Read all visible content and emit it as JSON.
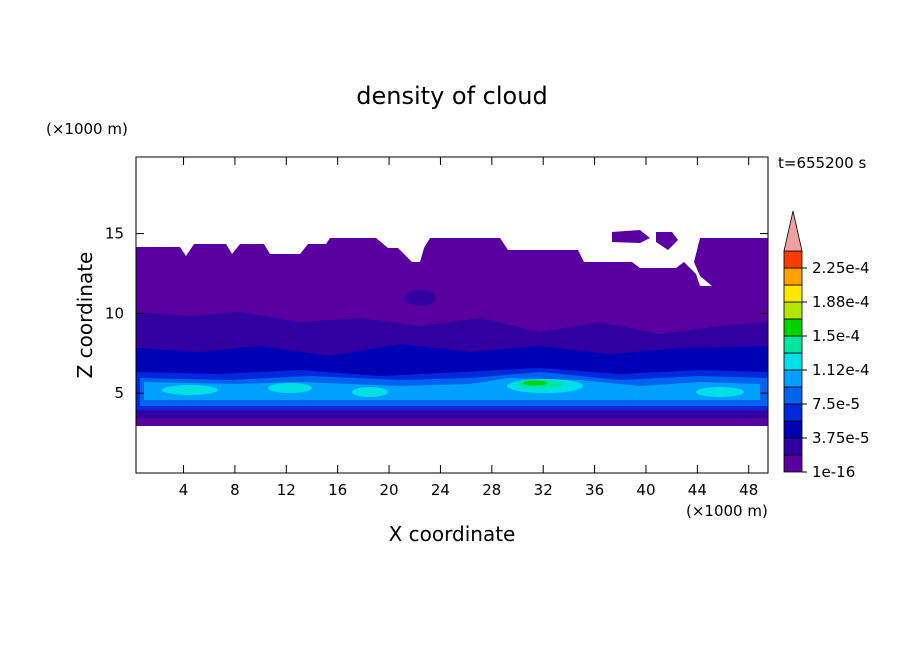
{
  "chart_data": {
    "type": "contour",
    "title": "density of cloud",
    "x_label": "X coordinate",
    "y_label": "Z coordinate",
    "x_unit": "(×1000 m)",
    "y_unit": "(×1000 m)",
    "time_label": "t=655200 s",
    "xlim": [
      0.3,
      49.5
    ],
    "ylim": [
      0,
      19.8
    ],
    "xticks": [
      4,
      8,
      12,
      16,
      20,
      24,
      28,
      32,
      36,
      40,
      44,
      48
    ],
    "yticks": [
      5,
      10,
      15
    ],
    "levels": [
      1e-16,
      1.875e-05,
      3.75e-05,
      5.625e-05,
      7.5e-05,
      9.375e-05,
      0.0001125,
      0.00013125,
      0.00015,
      0.00016875,
      0.0001875,
      0.00020625,
      0.000225,
      0.00024375
    ],
    "level_colors": [
      "#5a00a0",
      "#3200a0",
      "#0000b4",
      "#0028dc",
      "#0064f0",
      "#00a0ff",
      "#00e0e6",
      "#00e6a0",
      "#00d200",
      "#b4e600",
      "#ffe600",
      "#ffa000",
      "#ff3c00"
    ],
    "overflow_color": "#f0a0a0",
    "colorbar_ticks": [
      {
        "value": 1e-16,
        "label": "1e-16"
      },
      {
        "value": 3.75e-05,
        "label": "3.75e-5"
      },
      {
        "value": 7.5e-05,
        "label": "7.5e-5"
      },
      {
        "value": 0.0001125,
        "label": "1.12e-4"
      },
      {
        "value": 0.00015,
        "label": "1.5e-4"
      },
      {
        "value": 0.0001875,
        "label": "1.88e-4"
      },
      {
        "value": 0.000225,
        "label": "2.25e-4"
      }
    ]
  }
}
